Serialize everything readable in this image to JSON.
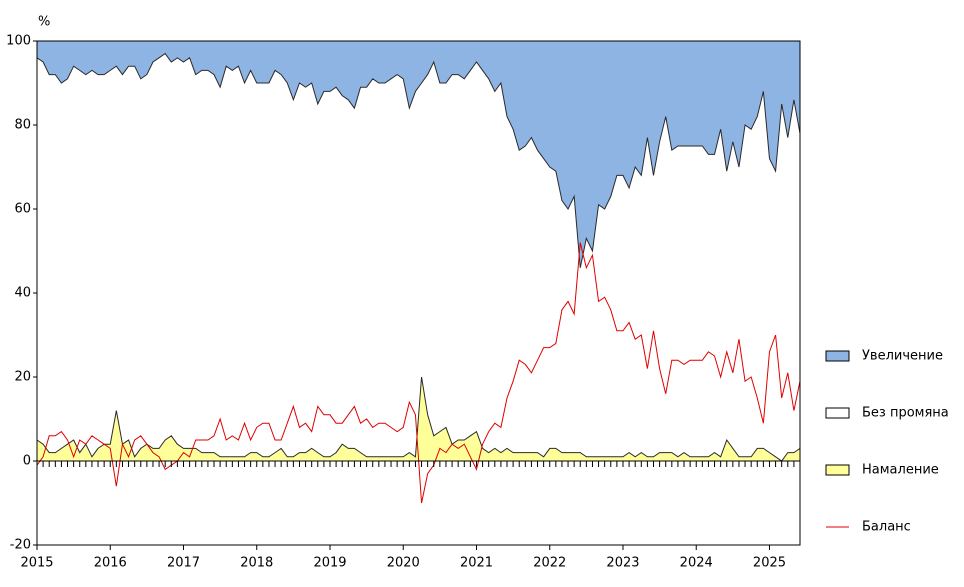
{
  "chart_data": {
    "type": "stacked-area-line",
    "ylabel": "%",
    "categories": [
      "2015",
      null,
      null,
      null,
      null,
      null,
      null,
      null,
      null,
      null,
      null,
      null,
      "2016",
      null,
      null,
      null,
      null,
      null,
      null,
      null,
      null,
      null,
      null,
      null,
      "2017",
      null,
      null,
      null,
      null,
      null,
      null,
      null,
      null,
      null,
      null,
      null,
      "2018",
      null,
      null,
      null,
      null,
      null,
      null,
      null,
      null,
      null,
      null,
      null,
      "2019",
      null,
      null,
      null,
      null,
      null,
      null,
      null,
      null,
      null,
      null,
      null,
      "2020",
      null,
      null,
      null,
      null,
      null,
      null,
      null,
      null,
      null,
      null,
      null,
      "2021",
      null,
      null,
      null,
      null,
      null,
      null,
      null,
      null,
      null,
      null,
      null,
      "2022",
      null,
      null,
      null,
      null,
      null,
      null,
      null,
      null,
      null,
      null,
      null,
      "2023",
      null,
      null,
      null,
      null,
      null,
      null,
      null,
      null,
      null,
      null,
      null,
      "2024",
      null,
      null,
      null,
      null,
      null,
      null,
      null,
      null,
      null,
      null,
      null,
      "2025",
      null,
      null,
      null,
      null,
      null
    ],
    "series": [
      {
        "name": "Увеличение",
        "color": "#8eb4e3",
        "kind": "area",
        "values": [
          4,
          5,
          8,
          8,
          10,
          9,
          6,
          7,
          8,
          7,
          8,
          8,
          7,
          6,
          8,
          6,
          6,
          9,
          8,
          5,
          4,
          3,
          5,
          4,
          5,
          4,
          8,
          7,
          7,
          8,
          11,
          6,
          7,
          6,
          10,
          7,
          10,
          10,
          10,
          7,
          8,
          10,
          14,
          10,
          11,
          10,
          15,
          12,
          12,
          11,
          13,
          14,
          16,
          11,
          11,
          9,
          10,
          10,
          9,
          8,
          9,
          16,
          12,
          10,
          8,
          5,
          10,
          10,
          8,
          8,
          9,
          7,
          5,
          7,
          9,
          12,
          10,
          18,
          21,
          26,
          25,
          23,
          26,
          28,
          30,
          31,
          38,
          40,
          37,
          54,
          47,
          50,
          39,
          40,
          37,
          32,
          32,
          35,
          30,
          32,
          23,
          32,
          24,
          18,
          26,
          25,
          25,
          25,
          25,
          25,
          27,
          27,
          21,
          31,
          24,
          30,
          20,
          21,
          18,
          12,
          28,
          31,
          15,
          23,
          14,
          22
        ]
      },
      {
        "name": "Без промяна",
        "color": "#ffffff",
        "kind": "area",
        "values": [
          91,
          91,
          90,
          90,
          87,
          87,
          89,
          91,
          88,
          92,
          89,
          88,
          89,
          82,
          88,
          89,
          93,
          88,
          88,
          92,
          93,
          92,
          89,
          92,
          92,
          93,
          89,
          91,
          91,
          90,
          88,
          93,
          92,
          93,
          89,
          91,
          88,
          89,
          89,
          91,
          89,
          89,
          85,
          88,
          87,
          87,
          83,
          87,
          87,
          87,
          83,
          83,
          81,
          87,
          88,
          90,
          89,
          89,
          90,
          91,
          90,
          82,
          87,
          70,
          81,
          89,
          83,
          82,
          88,
          87,
          86,
          87,
          88,
          90,
          89,
          85,
          88,
          79,
          77,
          72,
          73,
          75,
          72,
          71,
          67,
          66,
          60,
          58,
          61,
          44,
          52,
          49,
          60,
          59,
          62,
          67,
          67,
          63,
          69,
          66,
          76,
          67,
          74,
          80,
          72,
          74,
          73,
          74,
          74,
          74,
          72,
          71,
          78,
          64,
          73,
          69,
          79,
          78,
          79,
          85,
          70,
          68,
          85,
          75,
          84,
          75
        ]
      },
      {
        "name": "Намаление",
        "color": "#ffff99",
        "kind": "area",
        "values": [
          5,
          4,
          2,
          2,
          3,
          4,
          5,
          2,
          4,
          1,
          3,
          4,
          4,
          12,
          4,
          5,
          1,
          3,
          4,
          3,
          3,
          5,
          6,
          4,
          3,
          3,
          3,
          2,
          2,
          2,
          1,
          1,
          1,
          1,
          1,
          2,
          2,
          1,
          1,
          2,
          3,
          1,
          1,
          2,
          2,
          3,
          2,
          1,
          1,
          2,
          4,
          3,
          3,
          2,
          1,
          1,
          1,
          1,
          1,
          1,
          1,
          2,
          1,
          20,
          11,
          6,
          7,
          8,
          4,
          5,
          5,
          6,
          7,
          3,
          2,
          3,
          2,
          3,
          2,
          2,
          2,
          2,
          2,
          1,
          3,
          3,
          2,
          2,
          2,
          2,
          1,
          1,
          1,
          1,
          1,
          1,
          1,
          2,
          1,
          2,
          1,
          1,
          2,
          2,
          2,
          1,
          2,
          1,
          1,
          1,
          1,
          2,
          1,
          5,
          3,
          1,
          1,
          1,
          3,
          3,
          2,
          1,
          0,
          2,
          2,
          3
        ]
      },
      {
        "name": "Баланс",
        "color": "#e00000",
        "kind": "line",
        "values": [
          -1,
          1,
          6,
          6,
          7,
          5,
          1,
          5,
          4,
          6,
          5,
          4,
          3,
          -6,
          4,
          1,
          5,
          6,
          4,
          2,
          1,
          -2,
          -1,
          0,
          2,
          1,
          5,
          5,
          5,
          6,
          10,
          5,
          6,
          5,
          9,
          5,
          8,
          9,
          9,
          5,
          5,
          9,
          13,
          8,
          9,
          7,
          13,
          11,
          11,
          9,
          9,
          11,
          13,
          9,
          10,
          8,
          9,
          9,
          8,
          7,
          8,
          14,
          11,
          -10,
          -3,
          -1,
          3,
          2,
          4,
          3,
          4,
          1,
          -2,
          4,
          7,
          9,
          8,
          15,
          19,
          24,
          23,
          21,
          24,
          27,
          27,
          28,
          36,
          38,
          35,
          52,
          46,
          49,
          38,
          39,
          36,
          31,
          31,
          33,
          29,
          30,
          22,
          31,
          22,
          16,
          24,
          24,
          23,
          24,
          24,
          24,
          26,
          25,
          20,
          26,
          21,
          29,
          19,
          20,
          15,
          9,
          26,
          30,
          15,
          21,
          12,
          19
        ]
      }
    ],
    "ylim": [
      -20,
      100
    ],
    "yticks": [
      -20,
      0,
      20,
      40,
      60,
      80,
      100
    ],
    "grid": false,
    "legend": "right"
  }
}
